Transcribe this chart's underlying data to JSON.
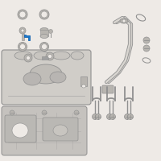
{
  "bg_color": "#eeeae6",
  "component_color": "#b8b5b0",
  "highlight_color": "#1a7acc",
  "line_color": "#909090",
  "dark_color": "#666666",
  "outline_color": "#909090",
  "mid_gray": "#c0bdb8",
  "light_bg": "#e8e5e0"
}
